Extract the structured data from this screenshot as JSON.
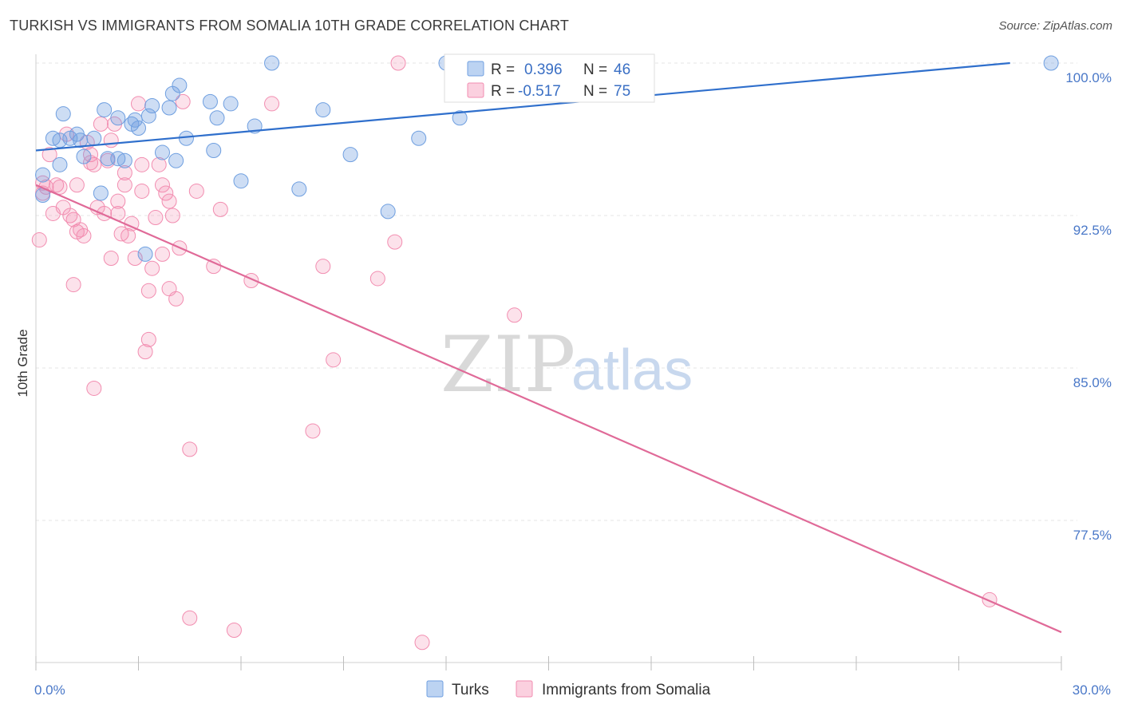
{
  "title": "TURKISH VS IMMIGRANTS FROM SOMALIA 10TH GRADE CORRELATION CHART",
  "source": "Source: ZipAtlas.com",
  "watermark": {
    "zip": "ZIP",
    "atlas": "atlas"
  },
  "colors": {
    "turks": "#6f9fe0",
    "somalia": "#f28db0",
    "turks_line": "#2f6fcc",
    "somalia_line": "#e06a98",
    "tick": "#4a78c8"
  },
  "legend": {
    "r_label": "R =",
    "n_label": "N =",
    "turks": {
      "r": "0.396",
      "n": "46"
    },
    "somalia": {
      "r": "-0.517",
      "n": "75"
    }
  },
  "bottom_legend": {
    "turks": "Turks",
    "somalia": "Immigrants from Somalia"
  },
  "chart_data": {
    "type": "scatter",
    "xlabel": "",
    "ylabel": "10th Grade",
    "xlim": [
      0,
      30
    ],
    "ylim": [
      71.5,
      100.5
    ],
    "y_ticks": [
      {
        "value": 100,
        "label": "100.0%"
      },
      {
        "value": 92.5,
        "label": "92.5%"
      },
      {
        "value": 85,
        "label": "85.0%"
      },
      {
        "value": 77.5,
        "label": "77.5%"
      }
    ],
    "x_tick_labels": [
      {
        "value": 0,
        "label": "0.0%"
      },
      {
        "value": 30,
        "label": "30.0%"
      }
    ],
    "x_minor_ticks": [
      0,
      3,
      6,
      9,
      12,
      15,
      18,
      21,
      24,
      27,
      30
    ],
    "series": [
      {
        "name": "Turks",
        "trend": {
          "x": [
            0,
            28.5
          ],
          "y": [
            95.7,
            100.0
          ]
        },
        "points": [
          [
            0.2,
            93.5
          ],
          [
            0.2,
            94.5
          ],
          [
            0.5,
            96.3
          ],
          [
            0.7,
            96.2
          ],
          [
            0.7,
            95.0
          ],
          [
            0.8,
            97.5
          ],
          [
            1.0,
            96.3
          ],
          [
            1.2,
            96.5
          ],
          [
            1.3,
            96.2
          ],
          [
            1.4,
            95.4
          ],
          [
            1.7,
            96.3
          ],
          [
            1.9,
            93.6
          ],
          [
            2.0,
            97.7
          ],
          [
            2.1,
            95.3
          ],
          [
            2.4,
            95.3
          ],
          [
            2.4,
            97.3
          ],
          [
            2.6,
            95.2
          ],
          [
            2.8,
            97.0
          ],
          [
            2.9,
            97.2
          ],
          [
            3.0,
            96.8
          ],
          [
            3.2,
            90.6
          ],
          [
            3.3,
            97.4
          ],
          [
            3.4,
            97.9
          ],
          [
            3.7,
            95.6
          ],
          [
            3.9,
            97.8
          ],
          [
            4.0,
            98.5
          ],
          [
            4.1,
            95.2
          ],
          [
            4.2,
            98.9
          ],
          [
            4.4,
            96.3
          ],
          [
            5.1,
            98.1
          ],
          [
            5.2,
            95.7
          ],
          [
            5.3,
            97.3
          ],
          [
            5.7,
            98.0
          ],
          [
            6.0,
            94.2
          ],
          [
            6.4,
            96.9
          ],
          [
            6.9,
            100.0
          ],
          [
            7.7,
            93.8
          ],
          [
            8.4,
            97.7
          ],
          [
            9.2,
            95.5
          ],
          [
            10.3,
            92.7
          ],
          [
            11.2,
            96.3
          ],
          [
            12.0,
            100.0
          ],
          [
            12.4,
            97.3
          ],
          [
            12.5,
            100.0
          ],
          [
            29.7,
            100.0
          ]
        ]
      },
      {
        "name": "Immigrants from Somalia",
        "trend": {
          "x": [
            0,
            30
          ],
          "y": [
            94.0,
            72.0
          ]
        },
        "points": [
          [
            0.1,
            91.3
          ],
          [
            0.2,
            93.6
          ],
          [
            0.2,
            94.1
          ],
          [
            0.3,
            93.9
          ],
          [
            0.4,
            95.5
          ],
          [
            0.5,
            92.6
          ],
          [
            0.6,
            94.0
          ],
          [
            0.7,
            93.9
          ],
          [
            0.8,
            92.9
          ],
          [
            0.9,
            96.5
          ],
          [
            1.0,
            92.5
          ],
          [
            1.1,
            92.3
          ],
          [
            1.1,
            89.1
          ],
          [
            1.2,
            91.7
          ],
          [
            1.2,
            94.0
          ],
          [
            1.3,
            91.8
          ],
          [
            1.4,
            91.5
          ],
          [
            1.5,
            96.1
          ],
          [
            1.6,
            95.5
          ],
          [
            1.6,
            95.1
          ],
          [
            1.7,
            84.0
          ],
          [
            1.7,
            95.0
          ],
          [
            1.8,
            92.9
          ],
          [
            1.9,
            97.0
          ],
          [
            2.0,
            92.6
          ],
          [
            2.1,
            95.2
          ],
          [
            2.2,
            96.2
          ],
          [
            2.2,
            90.4
          ],
          [
            2.3,
            97.0
          ],
          [
            2.4,
            92.6
          ],
          [
            2.4,
            93.2
          ],
          [
            2.5,
            91.6
          ],
          [
            2.6,
            94.6
          ],
          [
            2.6,
            94.0
          ],
          [
            2.7,
            91.5
          ],
          [
            2.8,
            92.1
          ],
          [
            2.9,
            90.4
          ],
          [
            3.0,
            98.0
          ],
          [
            3.1,
            95.0
          ],
          [
            3.1,
            93.7
          ],
          [
            3.2,
            85.8
          ],
          [
            3.3,
            86.4
          ],
          [
            3.3,
            88.8
          ],
          [
            3.4,
            89.9
          ],
          [
            3.5,
            92.4
          ],
          [
            3.6,
            95.0
          ],
          [
            3.7,
            94.0
          ],
          [
            3.7,
            90.6
          ],
          [
            3.8,
            93.6
          ],
          [
            3.9,
            93.2
          ],
          [
            3.9,
            88.9
          ],
          [
            4.0,
            92.5
          ],
          [
            4.1,
            88.4
          ],
          [
            4.2,
            90.9
          ],
          [
            4.3,
            98.1
          ],
          [
            4.5,
            81.0
          ],
          [
            4.5,
            72.7
          ],
          [
            4.7,
            93.7
          ],
          [
            5.2,
            90.0
          ],
          [
            5.4,
            92.8
          ],
          [
            5.8,
            72.1
          ],
          [
            6.3,
            89.3
          ],
          [
            6.9,
            98.0
          ],
          [
            8.1,
            81.9
          ],
          [
            8.4,
            90.0
          ],
          [
            8.7,
            85.4
          ],
          [
            10.0,
            89.4
          ],
          [
            10.5,
            91.2
          ],
          [
            10.6,
            100.0
          ],
          [
            11.3,
            71.5
          ],
          [
            14.0,
            87.6
          ],
          [
            27.9,
            73.6
          ]
        ]
      }
    ]
  }
}
